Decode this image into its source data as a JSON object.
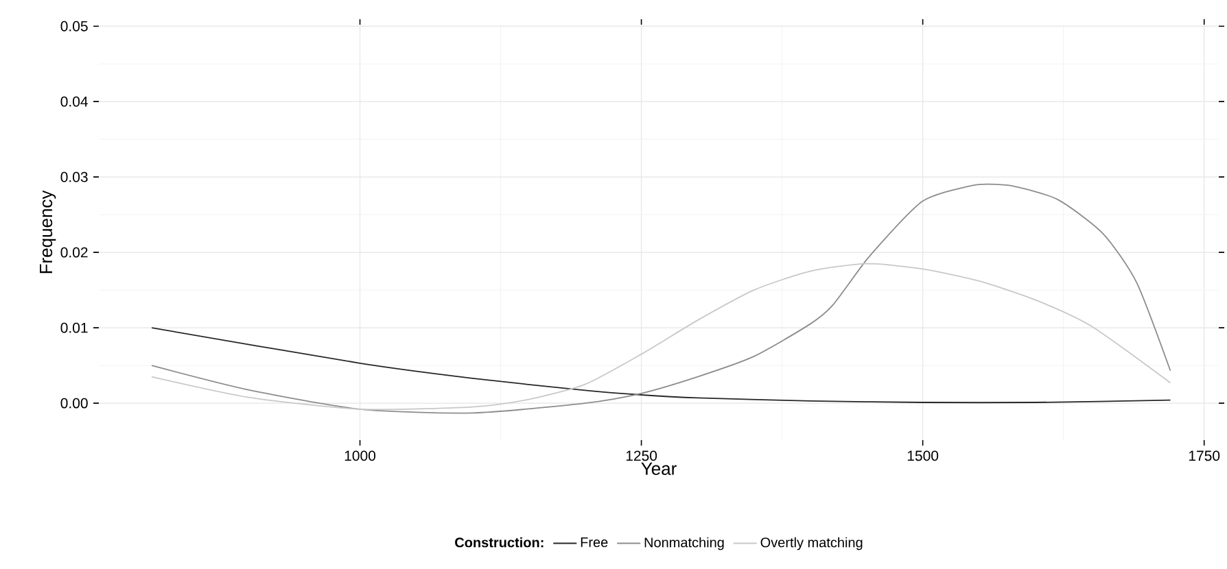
{
  "chart_data": {
    "type": "line",
    "xlabel": "Year",
    "ylabel": "Frequency",
    "legend_title": "Construction:",
    "xlim": [
      768,
      1763
    ],
    "xticks": [
      1000,
      1250,
      1500,
      1750
    ],
    "ylim": [
      -0.0049,
      0.0502
    ],
    "yticks": [
      {
        "value": 0,
        "label": "0.00"
      },
      {
        "value": 0.01,
        "label": "0.01"
      },
      {
        "value": 0.02,
        "label": "0.02"
      },
      {
        "value": 0.03,
        "label": "0.03"
      },
      {
        "value": 0.04,
        "label": "0.04"
      },
      {
        "value": 0.05,
        "label": "0.05"
      }
    ],
    "grid": true,
    "legend": "bottom",
    "line_style": "solid",
    "series": [
      {
        "name": "Free",
        "color": "#262626",
        "x": [
          815,
          1000,
          1100,
          1200,
          1250,
          1300,
          1400,
          1500,
          1600,
          1720
        ],
        "values": [
          0.01,
          0.0053,
          0.0033,
          0.0017,
          0.0011,
          0.0007,
          0.0003,
          0.0001,
          0.0001,
          0.0004
        ]
      },
      {
        "name": "Nonmatching",
        "color": "#8c8c8c",
        "x": [
          815,
          900,
          1000,
          1100,
          1200,
          1250,
          1300,
          1350,
          1400,
          1420,
          1450,
          1480,
          1500,
          1520,
          1550,
          1580,
          1620,
          1660,
          1690,
          1720
        ],
        "values": [
          0.005,
          0.0018,
          -0.0008,
          -0.0013,
          0.0,
          0.0013,
          0.0035,
          0.0062,
          0.0105,
          0.013,
          0.019,
          0.024,
          0.0268,
          0.028,
          0.029,
          0.0288,
          0.027,
          0.0225,
          0.016,
          0.0043
        ]
      },
      {
        "name": "Overtly matching",
        "color": "#c8c8c8",
        "x": [
          815,
          900,
          1000,
          1100,
          1150,
          1200,
          1250,
          1300,
          1350,
          1400,
          1450,
          1500,
          1550,
          1600,
          1650,
          1720
        ],
        "values": [
          0.0035,
          0.0008,
          -0.0008,
          -0.0005,
          0.0005,
          0.0025,
          0.0065,
          0.011,
          0.015,
          0.0175,
          0.0185,
          0.0178,
          0.0162,
          0.0137,
          0.0102,
          0.0027
        ]
      }
    ]
  }
}
